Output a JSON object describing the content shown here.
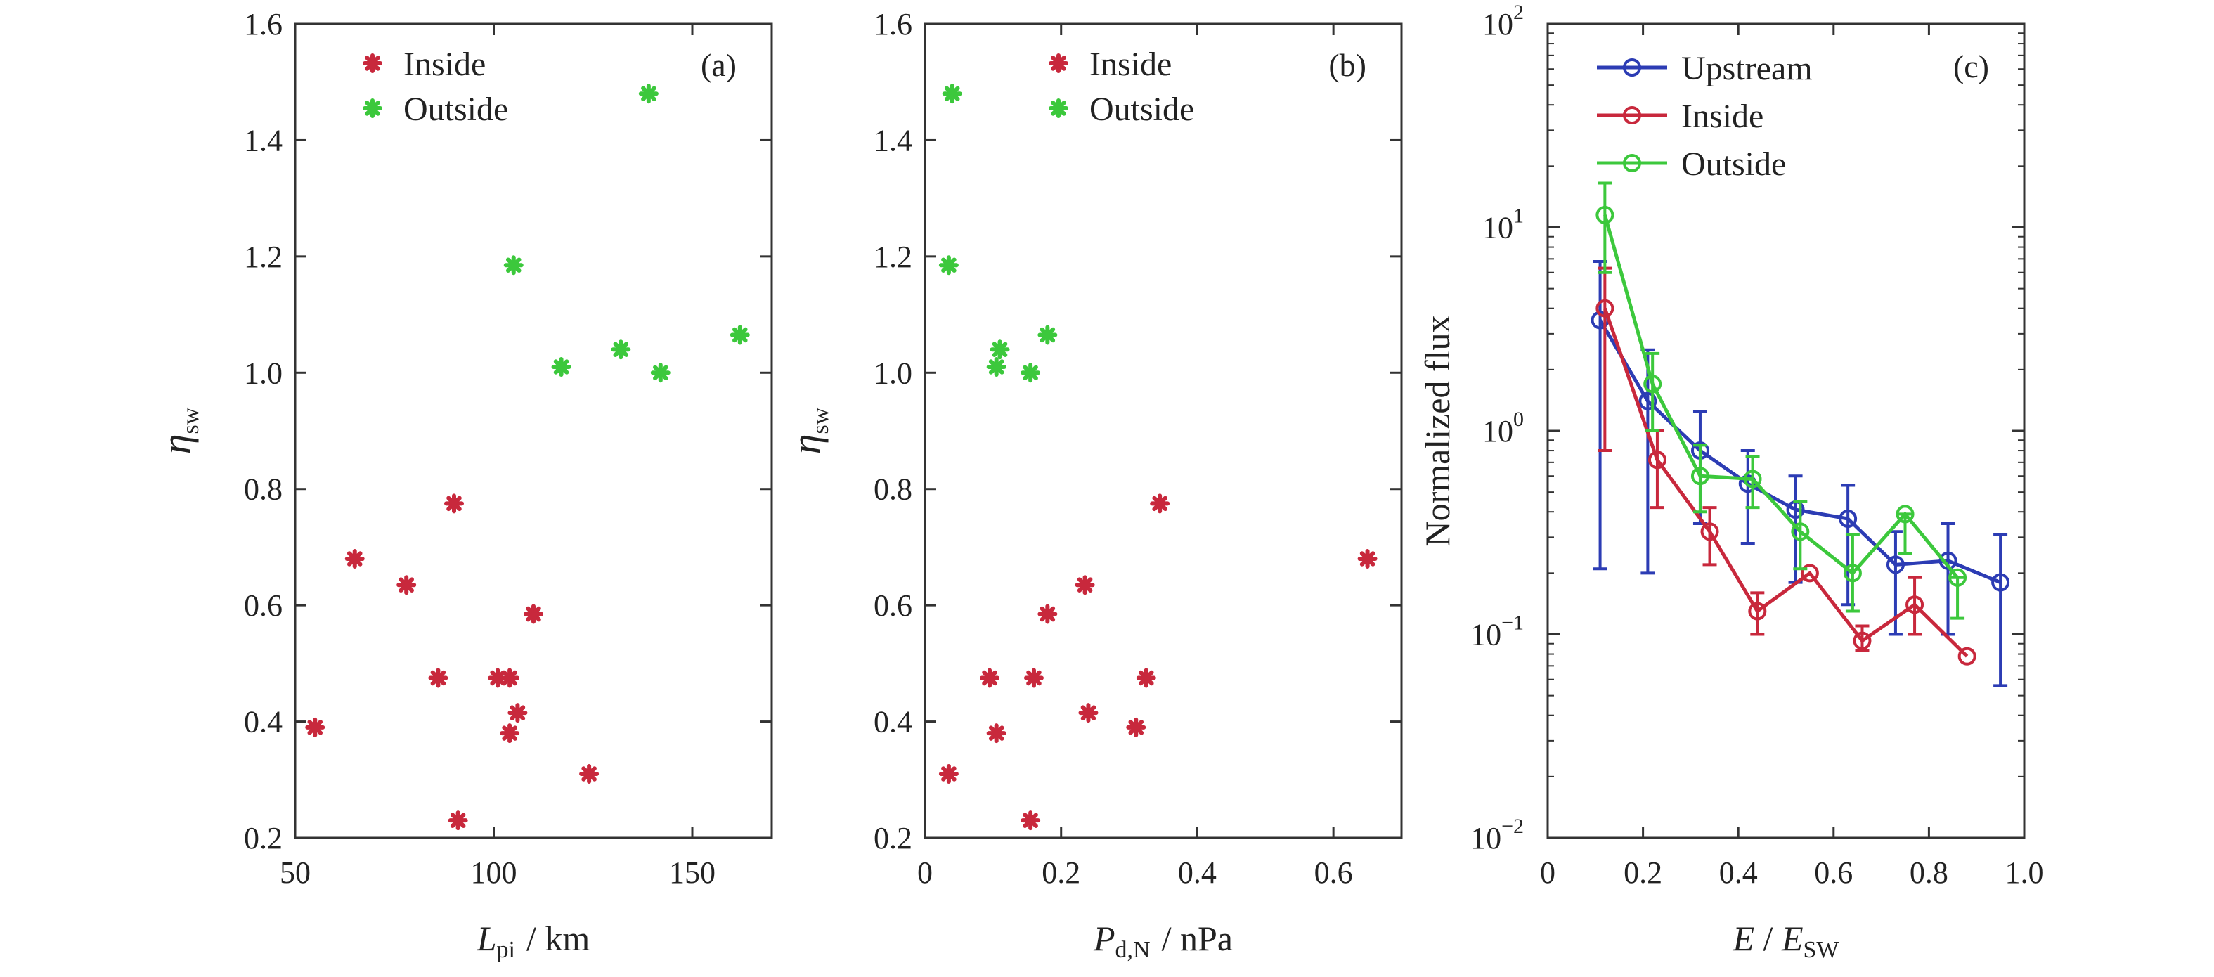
{
  "chart_data": [
    {
      "type": "scatter",
      "panel_label": "(a)",
      "ylabel_symbol": "η",
      "ylabel_sub": "sw",
      "xlabel_symbol": "L",
      "xlabel_sub": "pi",
      "xlabel_unit": "/ km",
      "xlim": [
        50,
        170
      ],
      "ylim": [
        0.2,
        1.6
      ],
      "xticks": [
        50,
        100,
        150
      ],
      "xtick_labels": [
        "50",
        "100",
        "150"
      ],
      "yticks": [
        0.2,
        0.4,
        0.6,
        0.8,
        1.0,
        1.2,
        1.4,
        1.6
      ],
      "ytick_labels": [
        "0.2",
        "0.4",
        "0.6",
        "0.8",
        "1.0",
        "1.2",
        "1.4",
        "1.6"
      ],
      "legend_position": "top-left",
      "series": [
        {
          "name": "Inside",
          "color": "#c8283c",
          "points": [
            [
              55,
              0.39
            ],
            [
              65,
              0.68
            ],
            [
              78,
              0.635
            ],
            [
              86,
              0.475
            ],
            [
              90,
              0.775
            ],
            [
              91,
              0.23
            ],
            [
              101,
              0.475
            ],
            [
              104,
              0.475
            ],
            [
              104,
              0.38
            ],
            [
              106,
              0.415
            ],
            [
              110,
              0.585
            ],
            [
              124,
              0.31
            ]
          ]
        },
        {
          "name": "Outside",
          "color": "#3cc83c",
          "points": [
            [
              105,
              1.185
            ],
            [
              117,
              1.01
            ],
            [
              132,
              1.04
            ],
            [
              139,
              1.48
            ],
            [
              142,
              1.0
            ],
            [
              162,
              1.065
            ]
          ]
        }
      ]
    },
    {
      "type": "scatter",
      "panel_label": "(b)",
      "ylabel_symbol": "η",
      "ylabel_sub": "sw",
      "xlabel_symbol": "P",
      "xlabel_sub": "d,N",
      "xlabel_unit": "/ nPa",
      "xlim": [
        0,
        0.7
      ],
      "ylim": [
        0.2,
        1.6
      ],
      "xticks": [
        0,
        0.2,
        0.4,
        0.6
      ],
      "xtick_labels": [
        "0",
        "0.2",
        "0.4",
        "0.6"
      ],
      "yticks": [
        0.2,
        0.4,
        0.6,
        0.8,
        1.0,
        1.2,
        1.4,
        1.6
      ],
      "ytick_labels": [
        "0.2",
        "0.4",
        "0.6",
        "0.8",
        "1.0",
        "1.2",
        "1.4",
        "1.6"
      ],
      "legend_position": "top-center",
      "series": [
        {
          "name": "Inside",
          "color": "#c8283c",
          "points": [
            [
              0.035,
              0.31
            ],
            [
              0.095,
              0.475
            ],
            [
              0.105,
              0.38
            ],
            [
              0.155,
              0.23
            ],
            [
              0.16,
              0.475
            ],
            [
              0.18,
              0.585
            ],
            [
              0.235,
              0.635
            ],
            [
              0.24,
              0.415
            ],
            [
              0.31,
              0.39
            ],
            [
              0.325,
              0.475
            ],
            [
              0.345,
              0.775
            ],
            [
              0.65,
              0.68
            ]
          ]
        },
        {
          "name": "Outside",
          "color": "#3cc83c",
          "points": [
            [
              0.04,
              1.48
            ],
            [
              0.035,
              1.185
            ],
            [
              0.105,
              1.01
            ],
            [
              0.11,
              1.04
            ],
            [
              0.155,
              1.0
            ],
            [
              0.18,
              1.065
            ]
          ]
        }
      ]
    },
    {
      "type": "line",
      "panel_label": "(c)",
      "ylabel": "Normalized flux",
      "xlabel_symbol": "E",
      "xlabel_mid": " / ",
      "xlabel_symbol2": "E",
      "xlabel_sub": "SW",
      "xlim": [
        0,
        1.0
      ],
      "ylim": [
        0.01,
        100
      ],
      "yscale": "log",
      "xticks": [
        0,
        0.2,
        0.4,
        0.6,
        0.8,
        1.0
      ],
      "xtick_labels": [
        "0",
        "0.2",
        "0.4",
        "0.6",
        "0.8",
        "1.0"
      ],
      "yticks": [
        0.01,
        0.1,
        1,
        10,
        100
      ],
      "ytick_bases": [
        "10",
        "10",
        "10",
        "10",
        "10"
      ],
      "ytick_exps": [
        "−2",
        "−1",
        "0",
        "1",
        "2"
      ],
      "legend_position": "top-left",
      "series": [
        {
          "name": "Upstream",
          "color": "#2c3cb4",
          "points": [
            [
              0.11,
              3.5,
              0.21,
              6.8
            ],
            [
              0.21,
              1.4,
              0.2,
              2.5
            ],
            [
              0.32,
              0.8,
              0.35,
              1.25
            ],
            [
              0.42,
              0.55,
              0.28,
              0.8
            ],
            [
              0.52,
              0.41,
              0.18,
              0.6
            ],
            [
              0.63,
              0.37,
              0.14,
              0.54
            ],
            [
              0.73,
              0.22,
              0.1,
              0.32
            ],
            [
              0.84,
              0.23,
              0.1,
              0.35
            ],
            [
              0.95,
              0.18,
              0.056,
              0.31
            ]
          ]
        },
        {
          "name": "Inside",
          "color": "#c8283c",
          "points": [
            [
              0.12,
              4.0,
              0.8,
              6.3
            ],
            [
              0.23,
              0.72,
              0.42,
              1.0
            ],
            [
              0.34,
              0.32,
              0.22,
              0.42
            ],
            [
              0.44,
              0.13,
              0.1,
              0.16
            ],
            [
              0.55,
              0.2,
              0.2,
              0.2
            ],
            [
              0.66,
              0.093,
              0.083,
              0.11
            ],
            [
              0.77,
              0.14,
              0.1,
              0.19
            ],
            [
              0.88,
              0.078,
              0.078,
              0.078
            ]
          ]
        },
        {
          "name": "Outside",
          "color": "#3cc83c",
          "points": [
            [
              0.12,
              11.5,
              6.0,
              16.5
            ],
            [
              0.22,
              1.7,
              1.0,
              2.4
            ],
            [
              0.32,
              0.6,
              0.4,
              0.85
            ],
            [
              0.43,
              0.58,
              0.42,
              0.75
            ],
            [
              0.53,
              0.32,
              0.21,
              0.45
            ],
            [
              0.64,
              0.2,
              0.13,
              0.31
            ],
            [
              0.75,
              0.39,
              0.25,
              0.39
            ],
            [
              0.86,
              0.19,
              0.12,
              0.19
            ]
          ]
        }
      ]
    }
  ]
}
